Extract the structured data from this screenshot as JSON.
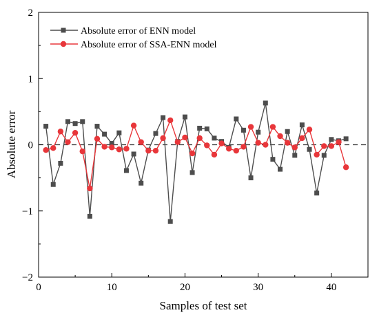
{
  "chart_data": {
    "type": "line",
    "title": "",
    "xlabel": "Samples of test set",
    "ylabel": "Absolute error",
    "xlim": [
      0,
      45
    ],
    "ylim": [
      -2,
      2
    ],
    "x_ticks": [
      0,
      10,
      20,
      30,
      40
    ],
    "y_ticks": [
      -2,
      -1,
      0,
      1,
      2
    ],
    "zero_reference_line": "dashed",
    "grid": false,
    "legend_position": "top-left",
    "x": [
      1,
      2,
      3,
      4,
      5,
      6,
      7,
      8,
      9,
      10,
      11,
      12,
      13,
      14,
      15,
      16,
      17,
      18,
      19,
      20,
      21,
      22,
      23,
      24,
      25,
      26,
      27,
      28,
      29,
      30,
      31,
      32,
      33,
      34,
      35,
      36,
      37,
      38,
      39,
      40,
      41,
      42
    ],
    "series": [
      {
        "name": "Absolute error of  ENN model",
        "color": "#4d4d4d",
        "marker": "square",
        "values": [
          0.28,
          -0.6,
          -0.28,
          0.35,
          0.32,
          0.35,
          -1.08,
          0.28,
          0.16,
          0.02,
          0.18,
          -0.39,
          -0.14,
          -0.58,
          -0.08,
          0.17,
          0.41,
          -1.16,
          0.05,
          0.42,
          -0.42,
          0.25,
          0.24,
          0.1,
          0.05,
          -0.04,
          0.39,
          0.22,
          -0.5,
          0.19,
          0.63,
          -0.22,
          -0.37,
          0.2,
          -0.16,
          0.3,
          -0.07,
          -0.73,
          -0.16,
          0.08,
          0.06,
          0.09
        ]
      },
      {
        "name": "Absolute error of SSA-ENN model",
        "color": "#e8363a",
        "marker": "circle",
        "values": [
          -0.08,
          -0.05,
          0.2,
          0.04,
          0.18,
          -0.1,
          -0.66,
          0.09,
          -0.03,
          -0.04,
          -0.07,
          -0.06,
          0.29,
          0.04,
          -0.09,
          -0.09,
          0.1,
          0.37,
          0.04,
          0.11,
          -0.13,
          0.1,
          -0.01,
          -0.15,
          0.02,
          -0.06,
          -0.09,
          -0.03,
          0.27,
          0.03,
          0.0,
          0.27,
          0.13,
          0.03,
          -0.04,
          0.1,
          0.23,
          -0.15,
          -0.02,
          -0.02,
          0.04,
          -0.34
        ]
      }
    ]
  }
}
